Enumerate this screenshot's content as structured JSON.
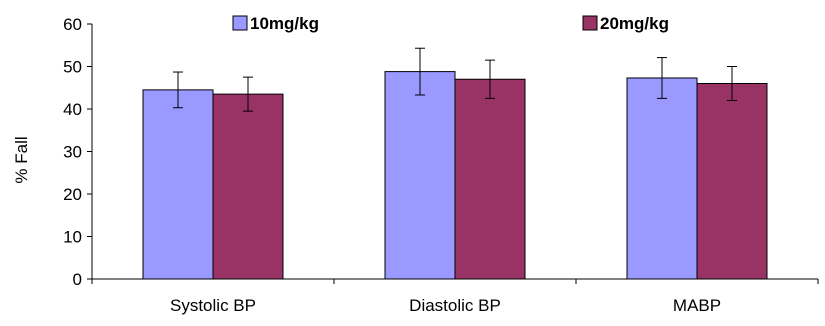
{
  "chart_data": {
    "type": "bar",
    "title": "",
    "xlabel": "",
    "ylabel": "% Fall",
    "ylim": [
      0,
      60
    ],
    "yticks": [
      0,
      10,
      20,
      30,
      40,
      50,
      60
    ],
    "grid": false,
    "legend_position": "top",
    "categories": [
      "Systolic BP",
      "Diastolic BP",
      "MABP"
    ],
    "series": [
      {
        "name": "10mg/kg",
        "color": "#9999ff",
        "values": [
          44.5,
          48.8,
          47.3
        ],
        "error": [
          4.2,
          5.5,
          4.8
        ]
      },
      {
        "name": "20mg/kg",
        "color": "#993366",
        "values": [
          43.5,
          47.0,
          46.0
        ],
        "error": [
          4.0,
          4.5,
          4.0
        ]
      }
    ]
  }
}
